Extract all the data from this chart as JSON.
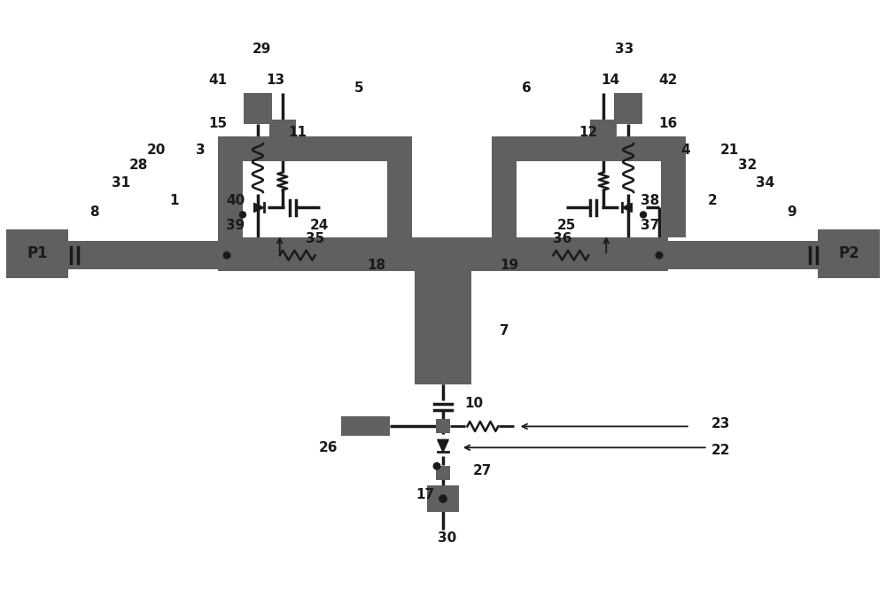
{
  "bg": "#ffffff",
  "dark": "#606060",
  "black": "#1a1a1a",
  "figsize": [
    10.0,
    6.74
  ],
  "dpi": 100
}
